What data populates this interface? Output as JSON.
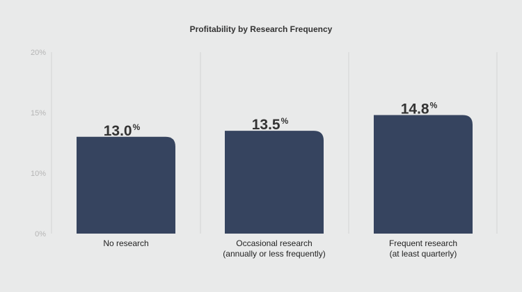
{
  "chart_data": {
    "type": "bar",
    "title": "Profitability by Research Frequency",
    "categories": [
      [
        "No research"
      ],
      [
        "Occasional research",
        "(annually or less frequently)"
      ],
      [
        "Frequent research",
        "(at least quarterly)"
      ]
    ],
    "values": [
      13.0,
      13.5,
      14.8
    ],
    "value_labels": [
      "13.0",
      "13.5",
      "14.8"
    ],
    "value_suffix": "%",
    "yticks": [
      0,
      10,
      15,
      20
    ],
    "ytick_labels": [
      "0%",
      "10%",
      "15%",
      "20%"
    ],
    "ylim": [
      0,
      20
    ],
    "xlabel": "",
    "ylabel": "",
    "grid": "vertical separators",
    "bar_color": "#36445f"
  }
}
